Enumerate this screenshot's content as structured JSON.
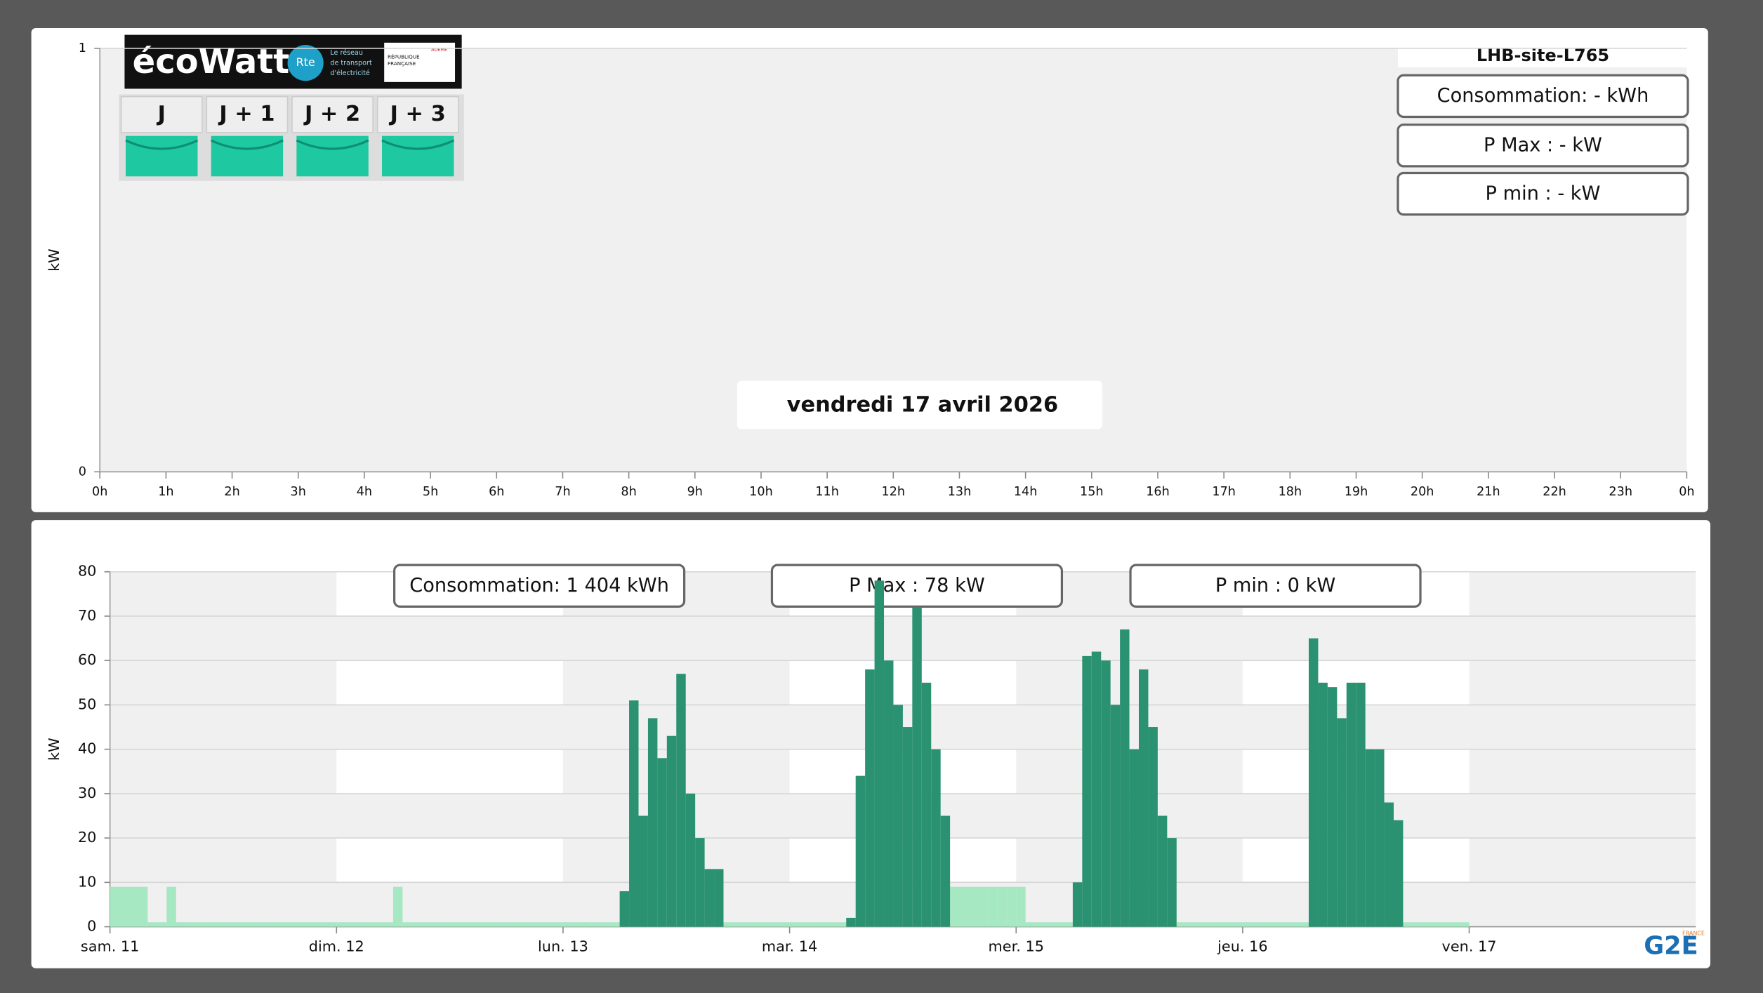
{
  "chart_data": [
    {
      "type": "bar",
      "site": "LHB-site-L765",
      "date": "vendredi 17 avril 2026",
      "info": [
        "Consommation: - kWh",
        "P Max :  - kW",
        "P min : - kW"
      ],
      "ylabel": "kW",
      "ylim": [
        0,
        1
      ],
      "yticks": [
        0,
        1
      ],
      "xlim": [
        0,
        24
      ],
      "xticks": [
        {
          "value": 0,
          "label": "0h"
        },
        {
          "value": 1,
          "label": "1h"
        },
        {
          "value": 2,
          "label": "2h"
        },
        {
          "value": 3,
          "label": "3h"
        },
        {
          "value": 4,
          "label": "4h"
        },
        {
          "value": 5,
          "label": "5h"
        },
        {
          "value": 6,
          "label": "6h"
        },
        {
          "value": 7,
          "label": "7h"
        },
        {
          "value": 8,
          "label": "8h"
        },
        {
          "value": 9,
          "label": "9h"
        },
        {
          "value": 10,
          "label": "10h"
        },
        {
          "value": 11,
          "label": "11h"
        },
        {
          "value": 12,
          "label": "12h"
        },
        {
          "value": 13,
          "label": "13h"
        },
        {
          "value": 14,
          "label": "14h"
        },
        {
          "value": 15,
          "label": "15h"
        },
        {
          "value": 16,
          "label": "16h"
        },
        {
          "value": 17,
          "label": "17h"
        },
        {
          "value": 18,
          "label": "18h"
        },
        {
          "value": 19,
          "label": "19h"
        },
        {
          "value": 20,
          "label": "20h"
        },
        {
          "value": 21,
          "label": "21h"
        },
        {
          "value": 22,
          "label": "22h"
        },
        {
          "value": 23,
          "label": "23h"
        },
        {
          "value": 24,
          "label": "0h"
        }
      ],
      "ecowatt": {
        "logo": "écoWatt",
        "rte": "Rte",
        "rte_text": [
          "Le réseau",
          "de transport",
          "d'électricité"
        ],
        "republique": [
          "RÉPUBLIQUE",
          "FRANÇAISE"
        ],
        "ademe": "ADEME",
        "days": [
          "J",
          "J + 1",
          "J + 2",
          "J + 3"
        ]
      }
    },
    {
      "type": "bar",
      "info": [
        "Consommation: 1 404 kWh",
        "P Max :  78 kW",
        "P min : 0 kW"
      ],
      "ylabel": "kW",
      "ylim": [
        0,
        80
      ],
      "yticks": [
        0,
        10,
        20,
        30,
        40,
        50,
        60,
        70,
        80
      ],
      "xlim": [
        0,
        168
      ],
      "xticks": [
        {
          "value": 0,
          "label": "sam. 11"
        },
        {
          "value": 24,
          "label": "dim. 12"
        },
        {
          "value": 48,
          "label": "lun. 13"
        },
        {
          "value": 72,
          "label": "mar. 14"
        },
        {
          "value": 96,
          "label": "mer. 15"
        },
        {
          "value": 120,
          "label": "jeu. 16"
        },
        {
          "value": 144,
          "label": "ven. 17"
        }
      ],
      "logo": "G2E",
      "logo_sub": "FRANCE",
      "x": [
        0,
        1,
        2,
        3,
        4,
        5,
        6,
        7,
        8,
        9,
        10,
        11,
        12,
        13,
        14,
        15,
        16,
        17,
        18,
        19,
        20,
        21,
        22,
        23,
        24,
        25,
        26,
        27,
        28,
        29,
        30,
        31,
        32,
        33,
        34,
        35,
        36,
        37,
        38,
        39,
        40,
        41,
        42,
        43,
        44,
        45,
        46,
        47,
        48,
        49,
        50,
        51,
        52,
        53,
        54,
        55,
        56,
        57,
        58,
        59,
        60,
        61,
        62,
        63,
        64,
        65,
        66,
        67,
        68,
        69,
        70,
        71,
        72,
        73,
        74,
        75,
        76,
        77,
        78,
        79,
        80,
        81,
        82,
        83,
        84,
        85,
        86,
        87,
        88,
        89,
        90,
        91,
        92,
        93,
        94,
        95,
        96,
        97,
        98,
        99,
        100,
        101,
        102,
        103,
        104,
        105,
        106,
        107,
        108,
        109,
        110,
        111,
        112,
        113,
        114,
        115,
        116,
        117,
        118,
        119,
        120,
        121,
        122,
        123,
        124,
        125,
        126,
        127,
        128,
        129,
        130,
        131,
        132,
        133,
        134,
        135,
        136,
        137,
        138,
        139,
        140,
        141,
        142,
        143
      ],
      "series": [
        {
          "color": "#a6e8c2",
          "values": [
            9,
            9,
            9,
            9,
            1,
            1,
            9,
            1,
            1,
            1,
            1,
            1,
            1,
            1,
            1,
            1,
            1,
            1,
            1,
            1,
            1,
            1,
            1,
            1,
            1,
            1,
            1,
            1,
            1,
            1,
            9,
            1,
            1,
            1,
            1,
            1,
            1,
            1,
            1,
            1,
            1,
            1,
            1,
            1,
            1,
            1,
            1,
            1,
            1,
            1,
            1,
            1,
            1,
            1,
            null,
            null,
            null,
            null,
            null,
            null,
            null,
            null,
            null,
            null,
            null,
            1,
            1,
            1,
            1,
            1,
            1,
            1,
            1,
            1,
            1,
            1,
            1,
            1,
            null,
            null,
            null,
            null,
            null,
            null,
            null,
            null,
            null,
            null,
            null,
            9,
            9,
            9,
            9,
            9,
            9,
            9,
            9,
            1,
            1,
            1,
            1,
            1,
            null,
            null,
            null,
            null,
            null,
            null,
            null,
            null,
            null,
            null,
            null,
            1,
            1,
            1,
            1,
            1,
            1,
            1,
            1,
            1,
            1,
            1,
            1,
            1,
            1,
            null,
            null,
            null,
            null,
            null,
            null,
            null,
            null,
            null,
            null,
            1,
            1,
            1,
            1,
            1,
            1,
            1
          ]
        },
        {
          "color": "#2a9270",
          "values": [
            null,
            null,
            null,
            null,
            null,
            null,
            null,
            null,
            null,
            null,
            null,
            null,
            null,
            null,
            null,
            null,
            null,
            null,
            null,
            null,
            null,
            null,
            null,
            null,
            null,
            null,
            null,
            null,
            null,
            null,
            null,
            null,
            null,
            null,
            null,
            null,
            null,
            null,
            null,
            null,
            null,
            null,
            null,
            null,
            null,
            null,
            null,
            null,
            null,
            null,
            null,
            null,
            null,
            null,
            8,
            51,
            25,
            47,
            38,
            43,
            57,
            30,
            20,
            13,
            13,
            null,
            null,
            null,
            null,
            null,
            null,
            null,
            null,
            null,
            null,
            null,
            null,
            null,
            2,
            34,
            58,
            78,
            60,
            50,
            45,
            72,
            55,
            40,
            25,
            null,
            null,
            null,
            null,
            null,
            null,
            null,
            null,
            null,
            null,
            null,
            null,
            null,
            10,
            61,
            62,
            60,
            50,
            67,
            40,
            58,
            45,
            25,
            20,
            null,
            null,
            null,
            null,
            null,
            null,
            null,
            null,
            null,
            null,
            null,
            null,
            null,
            null,
            65,
            55,
            54,
            47,
            55,
            55,
            40,
            40,
            28,
            24,
            null,
            null,
            null,
            null,
            null,
            null,
            null
          ]
        }
      ]
    }
  ]
}
